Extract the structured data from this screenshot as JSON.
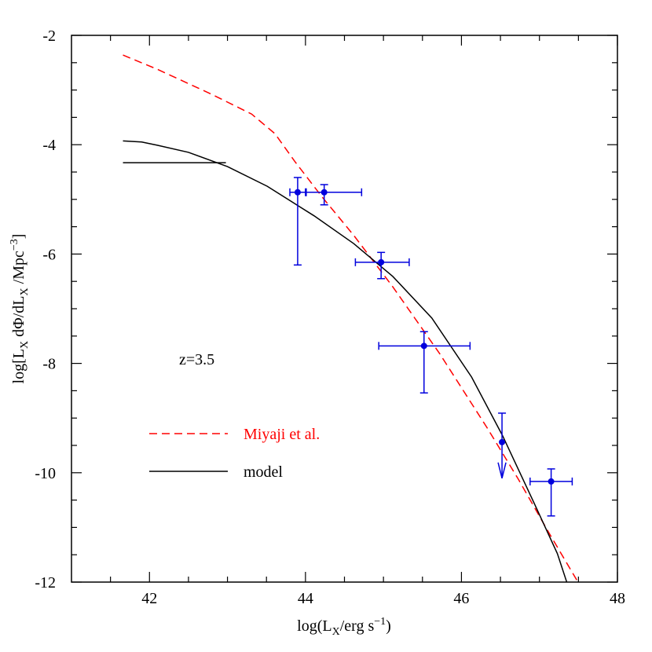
{
  "chart_data": {
    "type": "line",
    "xlabel": [
      "log(L",
      "X",
      "/erg s",
      "−1",
      ")"
    ],
    "ylabel": [
      "log[L",
      "X",
      " dΦ/dL",
      "X",
      " /Mpc",
      "−3",
      "]"
    ],
    "annotation": "z=3.5",
    "xlim": [
      41,
      48
    ],
    "ylim": [
      -12,
      -2
    ],
    "xticks": [
      42,
      44,
      46,
      48
    ],
    "yticks": [
      -2,
      -4,
      -6,
      -8,
      -10,
      -12
    ],
    "xticks_minor": [
      41.5,
      42.5,
      43,
      43.5,
      44.5,
      45,
      45.5,
      46.5,
      47,
      47.5
    ],
    "yticks_minor": [
      -2.5,
      -3,
      -3.5,
      -4.5,
      -5,
      -5.5,
      -6.5,
      -7,
      -7.5,
      -8.5,
      -9,
      -9.5,
      -10.5,
      -11,
      -11.5
    ],
    "series": [
      {
        "name": "Miyaji et al.",
        "color": "#ff0000",
        "dashed": true,
        "x": [
          41.66,
          42.1,
          42.8,
          43.31,
          43.61,
          43.86,
          44.21,
          44.62,
          45.12,
          45.72,
          46.33,
          46.73,
          47.13,
          47.49
        ],
        "values": [
          -2.36,
          -2.62,
          -3.08,
          -3.44,
          -3.8,
          -4.3,
          -4.95,
          -5.66,
          -6.6,
          -7.82,
          -9.18,
          -10.12,
          -11.12,
          -11.99
        ]
      },
      {
        "name": "model",
        "color": "#000000",
        "dashed": false,
        "x": [
          41.66,
          41.9,
          42.1,
          42.5,
          43.0,
          43.51,
          44.11,
          44.62,
          45.12,
          45.62,
          46.13,
          46.53,
          46.93,
          47.23,
          47.35
        ],
        "values": [
          -3.93,
          -3.95,
          -4.01,
          -4.14,
          -4.4,
          -4.76,
          -5.3,
          -5.81,
          -6.41,
          -7.17,
          -8.25,
          -9.33,
          -10.55,
          -11.48,
          -12.0
        ]
      },
      {
        "color": "#000000",
        "dashed": false,
        "x": [
          41.66,
          42.98
        ],
        "values": [
          -4.33,
          -4.33
        ]
      }
    ],
    "errorbars": {
      "color": "#0000dd",
      "x": [
        43.9,
        44.24,
        44.97,
        45.52,
        46.52,
        47.15
      ],
      "values": [
        -4.87,
        -4.87,
        -6.15,
        -7.68,
        -9.44,
        -10.16
      ],
      "x_low": [
        43.8,
        44.0,
        44.64,
        44.94,
        null,
        46.88
      ],
      "x_high": [
        44.01,
        44.72,
        45.33,
        46.11,
        null,
        47.42
      ],
      "y_low": [
        -6.2,
        -5.1,
        -6.45,
        -8.54,
        null,
        -10.79
      ],
      "y_high": [
        -4.6,
        -4.73,
        -5.97,
        -7.42,
        -8.91,
        -9.93
      ],
      "upper_limit": [
        false,
        false,
        false,
        false,
        true,
        false
      ]
    }
  }
}
